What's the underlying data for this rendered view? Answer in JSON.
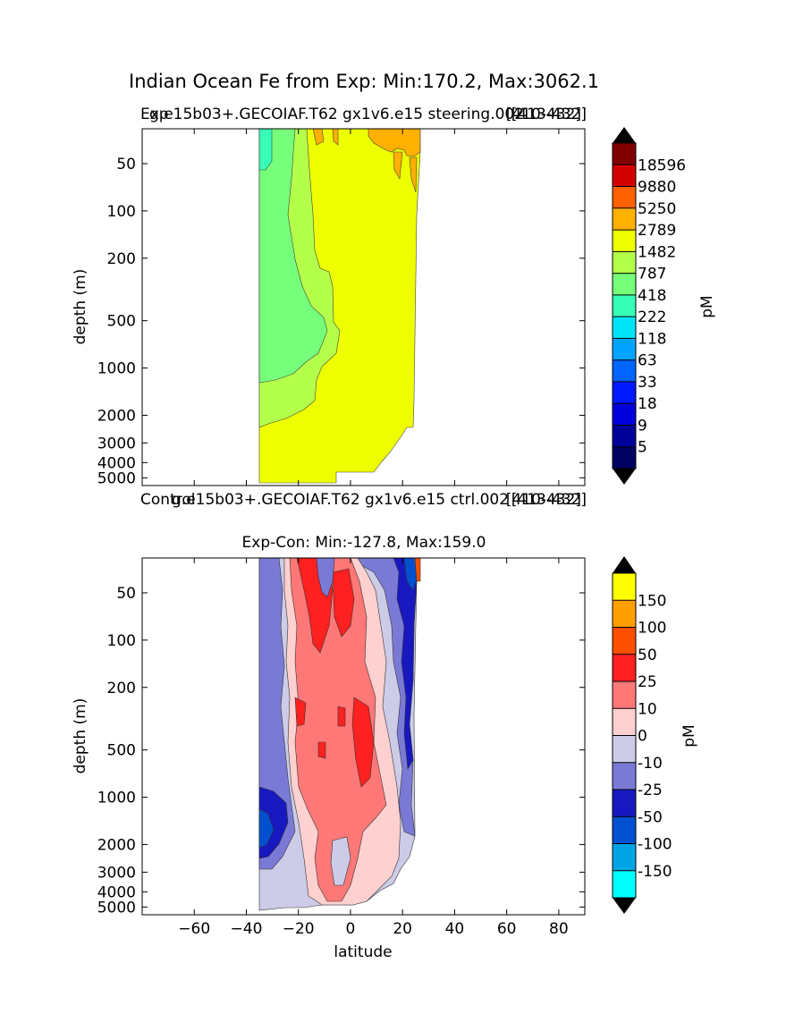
{
  "figure": {
    "suptitle": "Indian Ocean Fe from Exp: Min:170.2, Max:3062.1",
    "xlabel": "latitude"
  },
  "chart_data": [
    {
      "type": "heatmap",
      "panel": "top",
      "title_left_overlap": [
        "Exp",
        "g.e15b03+.GECOIAF.T62 gx1v6.e15 steering.002"
      ],
      "title_right_overlap": [
        "[413-432]",
        "[410-432]"
      ],
      "ylabel": "depth (m)",
      "y_scale": "log",
      "yticks": [
        "50",
        "100",
        "200",
        "500",
        "1000",
        "2000",
        "3000",
        "4000",
        "5000"
      ],
      "xlim": [
        -80,
        90
      ],
      "ylim": [
        5600,
        30
      ],
      "data_extent_lat": [
        -34,
        26
      ],
      "colorbar": {
        "label": "pM",
        "extend": "both",
        "ticks": [
          "18596",
          "9880",
          "5250",
          "2789",
          "1482",
          "787",
          "418",
          "222",
          "118",
          "63",
          "33",
          "18",
          "9",
          "5"
        ],
        "colors": [
          "#800000",
          "#d40000",
          "#ff6000",
          "#ffb000",
          "#eeff00",
          "#b4ff4a",
          "#76ff7a",
          "#38ffb8",
          "#00e4f8",
          "#00a4ff",
          "#0064ff",
          "#0018ff",
          "#0000da",
          "#00009a",
          "#000060"
        ],
        "over_color": "#000000",
        "under_color": "#000000"
      },
      "zones": [
        {
          "level": "118",
          "color": "#38ffb8"
        },
        {
          "level": "222",
          "color": "#76ff7a"
        },
        {
          "level": "418",
          "color": "#b4ff4a"
        },
        {
          "level": "787",
          "color": "#eeff00"
        },
        {
          "level": "1482",
          "color": "#ffb000"
        }
      ]
    },
    {
      "type": "heatmap",
      "panel": "bottom",
      "title_left_overlap": [
        "Control",
        "g.e15b03+.GECOIAF.T62 gx1v6.e15 ctrl.002"
      ],
      "title_right_overlap": [
        "[413-432]",
        "[410-432]"
      ],
      "title": "Exp-Con: Min:-127.8, Max:159.0",
      "ylabel": "depth (m)",
      "xlabel": "latitude",
      "y_scale": "log",
      "xticks": [
        "−60",
        "−40",
        "−20",
        "0",
        "20",
        "40",
        "60",
        "80"
      ],
      "yticks": [
        "50",
        "100",
        "200",
        "500",
        "1000",
        "2000",
        "3000",
        "4000",
        "5000"
      ],
      "xlim": [
        -80,
        90
      ],
      "ylim": [
        5600,
        30
      ],
      "data_extent_lat": [
        -34,
        26
      ],
      "colorbar": {
        "label": "pM",
        "extend": "both",
        "ticks": [
          "150",
          "100",
          "50",
          "25",
          "10",
          "0",
          "-10",
          "-25",
          "-50",
          "-100",
          "-150"
        ],
        "colors": [
          "#ffff00",
          "#ffa000",
          "#ff5000",
          "#ff2020",
          "#ff7878",
          "#ffd0d0",
          "#cccce8",
          "#7a7ad6",
          "#1818c0",
          "#0050d0",
          "#00a4e4",
          "#00ffff"
        ],
        "over_color": "#000000",
        "under_color": "#000000"
      },
      "zones": [
        {
          "level": "-25",
          "color": "#7a7ad6"
        },
        {
          "level": "-10",
          "color": "#cccce8"
        },
        {
          "level": "0",
          "color": "#ffd0d0"
        },
        {
          "level": "10",
          "color": "#ff7878"
        },
        {
          "level": "25",
          "color": "#ff2020"
        },
        {
          "level": "-50",
          "color": "#1818c0"
        },
        {
          "level": "-100",
          "color": "#0050d0"
        }
      ]
    }
  ]
}
